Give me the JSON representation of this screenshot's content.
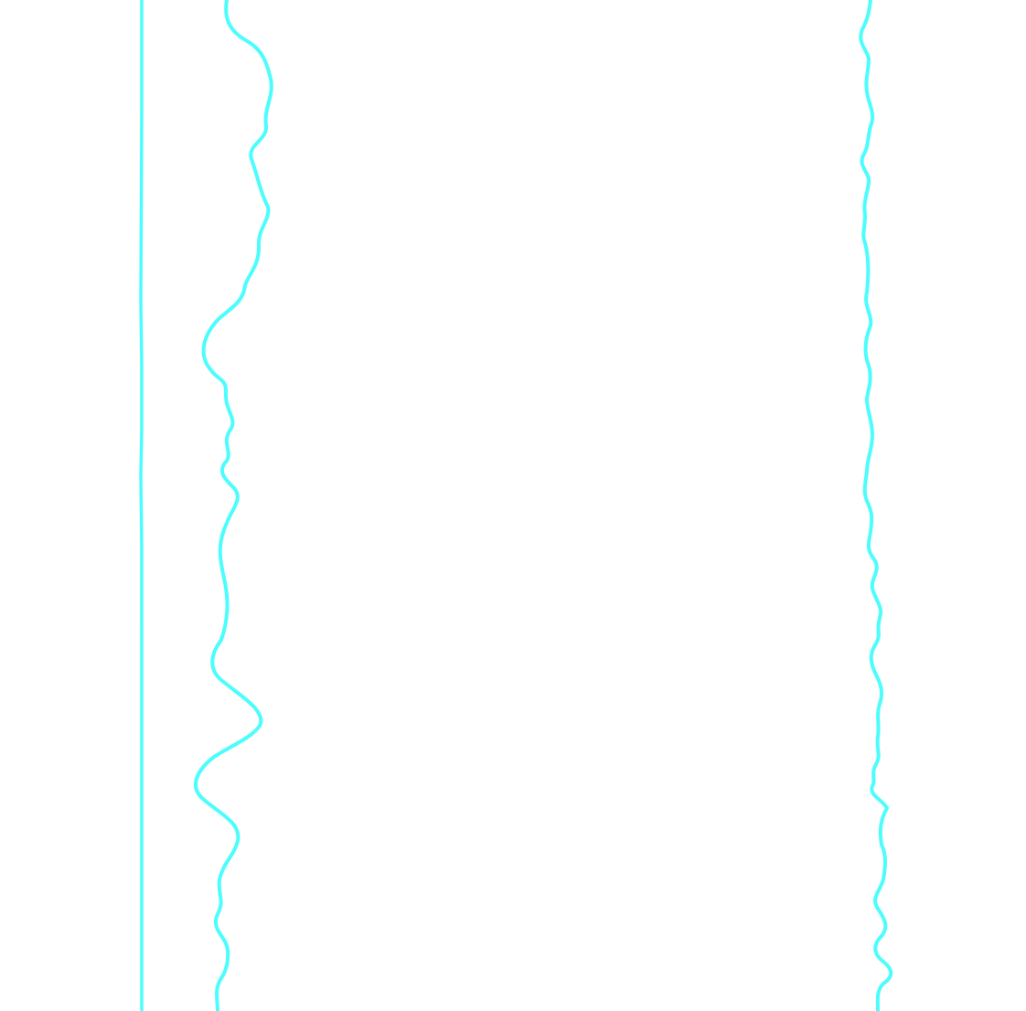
{
  "canvas": {
    "background_color": "#ffffff"
  },
  "lines": [
    {
      "name": "left-straight-line",
      "color": "#4dfdfd"
    },
    {
      "name": "middle-wavy-line",
      "color": "#4dfdfd"
    },
    {
      "name": "right-wavy-line",
      "color": "#4dfdfd"
    }
  ]
}
